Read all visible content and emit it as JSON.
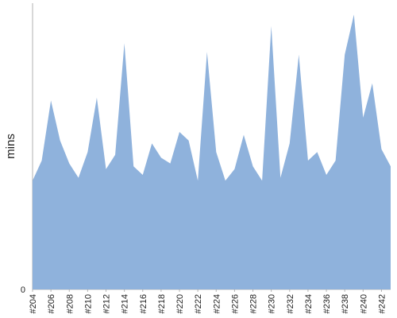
{
  "chart_data": {
    "type": "area",
    "title": "",
    "xlabel": "",
    "ylabel": "mins",
    "ylim": [
      0,
      100
    ],
    "y_ticks": [
      "0"
    ],
    "grid": false,
    "legend": "none",
    "x_tick_labels": [
      "#204",
      "#206",
      "#208",
      "#210",
      "#212",
      "#214",
      "#216",
      "#218",
      "#220",
      "#222",
      "#224",
      "#226",
      "#228",
      "#230",
      "#232",
      "#234",
      "#236",
      "#238",
      "#240",
      "#242"
    ],
    "categories": [
      "#204",
      "#205",
      "#206",
      "#207",
      "#208",
      "#209",
      "#210",
      "#211",
      "#212",
      "#213",
      "#214",
      "#215",
      "#216",
      "#217",
      "#218",
      "#219",
      "#220",
      "#221",
      "#222",
      "#223",
      "#224",
      "#225",
      "#226",
      "#227",
      "#228",
      "#229",
      "#230",
      "#231",
      "#232",
      "#233",
      "#234",
      "#235",
      "#236",
      "#237",
      "#238",
      "#239",
      "#240",
      "#241",
      "#242",
      "#243"
    ],
    "series": [
      {
        "values": [
          38,
          45,
          66,
          52,
          44,
          39,
          48,
          67,
          42,
          47,
          86,
          43,
          40,
          51,
          46,
          44,
          55,
          52,
          38,
          83,
          48,
          38,
          42,
          54,
          43,
          38,
          92,
          39,
          51,
          82,
          45,
          48,
          40,
          45,
          82,
          96,
          60,
          72,
          49,
          43
        ],
        "color": "#8fb2dc"
      }
    ],
    "colors": {
      "fill": "#8fb2dc",
      "axis": "#b0b0b0"
    }
  }
}
